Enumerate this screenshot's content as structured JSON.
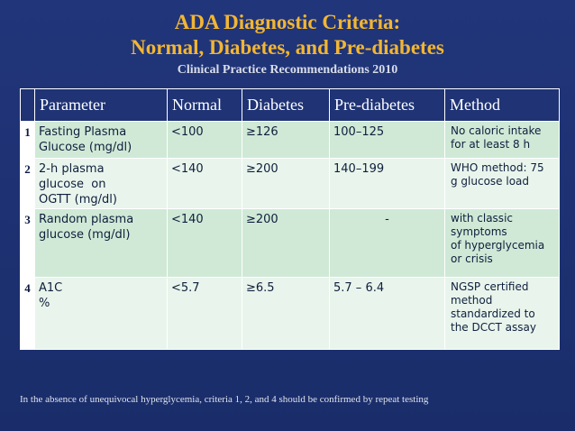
{
  "header": {
    "title_line1": "ADA Diagnostic Criteria:",
    "title_line2": "Normal, Diabetes, and Pre-diabetes",
    "subtitle": "Clinical Practice Recommendations 2010"
  },
  "table": {
    "columns": [
      "Parameter",
      "Normal",
      "Diabetes",
      "Pre-diabetes",
      "Method"
    ],
    "rows": [
      {
        "num": "1",
        "parameter_lines": [
          "Fasting Plasma",
          "Glucose (mg/dl)"
        ],
        "normal": "<100",
        "diabetes": "≥126",
        "prediabetes": "100–125",
        "method_lines": [
          "No caloric intake",
          "for at least 8 h"
        ]
      },
      {
        "num": "2",
        "parameter_lines": [
          "2-h plasma",
          "glucose  on",
          "OGTT (mg/dl)"
        ],
        "normal": "<140",
        "diabetes": "≥200",
        "prediabetes": "140–199",
        "method_lines": [
          "WHO method: 75",
          "g glucose load"
        ]
      },
      {
        "num": "3",
        "parameter_lines": [
          "Random plasma",
          "glucose (mg/dl)"
        ],
        "normal": "<140",
        "diabetes": "≥200",
        "prediabetes": "-",
        "method_lines": [
          "with classic",
          "symptoms",
          "of hyperglycemia",
          "or crisis"
        ]
      },
      {
        "num": "4",
        "parameter_lines": [
          "A1C",
          "%"
        ],
        "normal": "<5.7",
        "diabetes": "≥6.5",
        "prediabetes": "5.7 – 6.4",
        "method_lines": [
          "NGSP certified",
          "method",
          "standardized to",
          "the DCCT assay"
        ]
      }
    ]
  },
  "footnote": "In the absence of  unequivocal hyperglycemia, criteria 1, 2, and 4 should be confirmed by repeat testing"
}
